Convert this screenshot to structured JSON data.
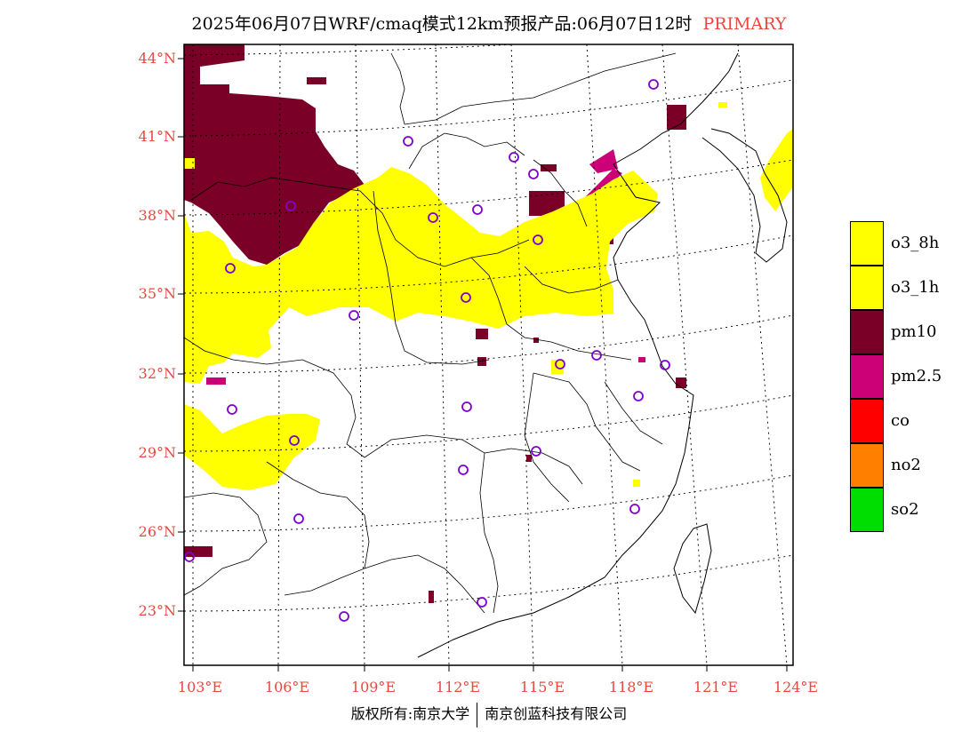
{
  "title": {
    "main": "2025年06月07日WRF/cmaq模式12km预报产品:06月07日12时",
    "tag": "PRIMARY"
  },
  "colors": {
    "frame": "#000000",
    "label": "#e8483f",
    "o3_8h": "#ffff00",
    "o3_1h": "#ffff00",
    "pm10": "#7a0028",
    "pm25": "#cc0077",
    "co": "#ff0000",
    "no2": "#ff8000",
    "so2": "#00dd00",
    "station": "#8000cc"
  },
  "axes": {
    "lat_labels": [
      "44°N",
      "41°N",
      "38°N",
      "35°N",
      "32°N",
      "29°N",
      "26°N",
      "23°N"
    ],
    "lon_labels": [
      "103°E",
      "106°E",
      "109°E",
      "112°E",
      "115°E",
      "118°E",
      "121°E",
      "124°E"
    ]
  },
  "legend": [
    {
      "label": "o3_8h",
      "color": "#ffff00"
    },
    {
      "label": "o3_1h",
      "color": "#ffff00"
    },
    {
      "label": "pm10",
      "color": "#7a0028"
    },
    {
      "label": "pm2.5",
      "color": "#cc0077"
    },
    {
      "label": "co",
      "color": "#ff0000"
    },
    {
      "label": "no2",
      "color": "#ff8000"
    },
    {
      "label": "so2",
      "color": "#00dd00"
    }
  ],
  "copyright": {
    "left": "版权所有:南京大学",
    "right": "南京创蓝科技有限公司"
  }
}
